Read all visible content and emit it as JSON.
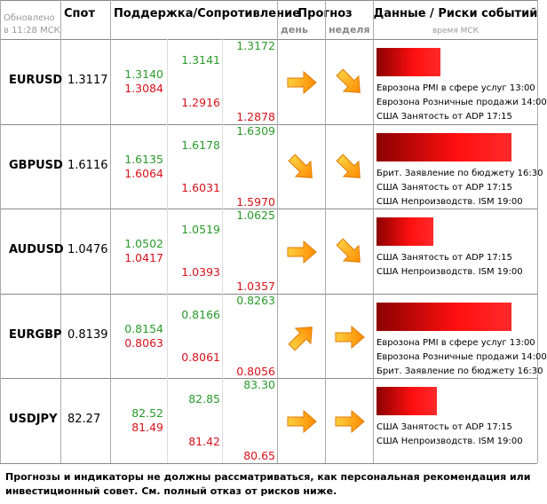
{
  "header": {
    "updated": "Обновлено в 11:28 МСК",
    "spot": "Спот",
    "levels": "Поддержка/Сопротивление",
    "forecast": "Прогноз",
    "day": "день",
    "week": "неделя",
    "events": "Данные / Риски событий",
    "time": "время МСК"
  },
  "rows": [
    {
      "pair": "EURUSD",
      "spot": "1.3117",
      "resistance": [
        "1.3172",
        "1.3141",
        "1.3140"
      ],
      "support": [
        "1.3084",
        "1.2916",
        "1.2878"
      ],
      "forecast": {
        "day": "right",
        "week": "down-right"
      },
      "events": [
        "Еврозона PMI в сфере услуг 13:00",
        "Еврозона Розничные продажи 14:00",
        "США Занятость от ADP 17:15"
      ]
    },
    {
      "pair": "GBPUSD",
      "spot": "1.6116",
      "resistance": [
        "1.6309",
        "1.6178",
        "1.6135"
      ],
      "support": [
        "1.6064",
        "1.6031",
        "1.5970"
      ],
      "forecast": {
        "day": "down-right",
        "week": "down-right"
      },
      "events": [
        "Брит. Заявление по бюджету 16:30",
        "США Занятость от ADP 17:15",
        "США Непроизводств. ISM 19:00"
      ]
    },
    {
      "pair": "AUDUSD",
      "spot": "1.0476",
      "resistance": [
        "1.0625",
        "1.0519",
        "1.0502"
      ],
      "support": [
        "1.0417",
        "1.0393",
        "1.0357"
      ],
      "forecast": {
        "day": "right",
        "week": "down-right"
      },
      "events": [
        "США Занятость от ADP 17:15",
        "США Непроизводств. ISM 19:00"
      ]
    },
    {
      "pair": "EURGBP",
      "spot": "0.8139",
      "resistance": [
        "0.8263",
        "0.8166",
        "0.8154"
      ],
      "support": [
        "0.8063",
        "0.8061",
        "0.8056"
      ],
      "forecast": {
        "day": "up-right",
        "week": "right"
      },
      "events": [
        "Еврозона PMI в сфере услуг 13:00",
        "Еврозона Розничные продажи 14:00",
        "Брит. Заявление по бюджету 16:30"
      ]
    },
    {
      "pair": "USDJPY",
      "spot": "82.27",
      "resistance": [
        "83.30",
        "82.85",
        "82.52"
      ],
      "support": [
        "81.49",
        "81.42",
        "80.65"
      ],
      "forecast": {
        "day": "right",
        "week": "right"
      },
      "events": [
        "США Занятость от ADP 17:15",
        "США Непроизводств. ISM 19:00"
      ]
    }
  ],
  "note": "Прогнозы и индикаторы не должны рассматриваться, как персональная рекомендация или инвестиционный совет. См. полный отказ от рисков ниже."
}
